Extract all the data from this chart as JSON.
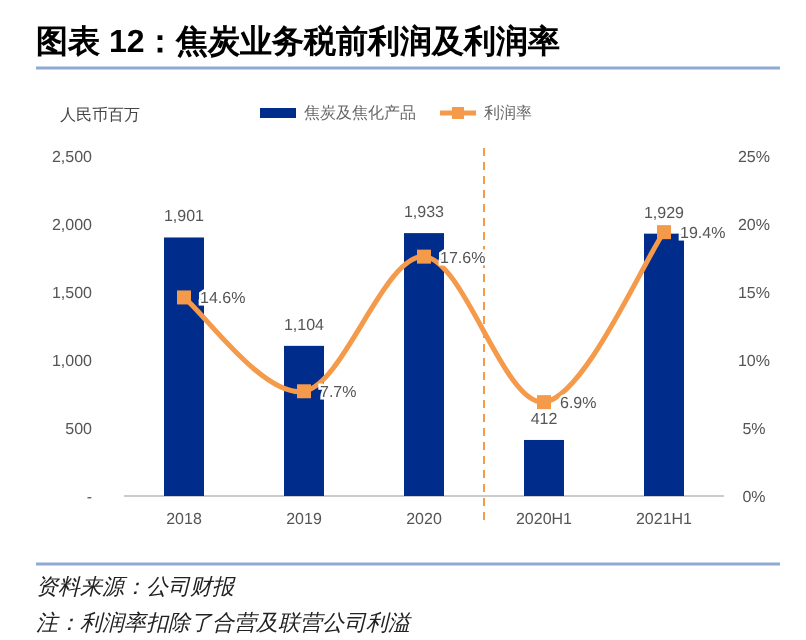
{
  "chart_data": {
    "type": "bar",
    "title": "图表 12：焦炭业务税前利润及利润率",
    "ylabel": "人民币百万",
    "categories": [
      "2018",
      "2019",
      "2020",
      "2020H1",
      "2021H1"
    ],
    "series": [
      {
        "name": "焦炭及焦化产品",
        "color": "#002d8c",
        "values": [
          1901,
          1104,
          1933,
          412,
          1929
        ],
        "value_labels": [
          "1,901",
          "1,104",
          "1,933",
          "412",
          "1,929"
        ]
      },
      {
        "name": "利润率",
        "type": "line",
        "axis": "y2",
        "color": "#f5994a",
        "marker": "square",
        "values": [
          14.6,
          7.7,
          17.6,
          6.9,
          19.4
        ],
        "value_labels": [
          "14.6%",
          "7.7%",
          "17.6%",
          "6.9%",
          "19.4%"
        ]
      }
    ],
    "ylim": [
      0,
      2500
    ],
    "yticks": [
      {
        "value": 0,
        "label": "-"
      },
      {
        "value": 500,
        "label": "500"
      },
      {
        "value": 1000,
        "label": "1,000"
      },
      {
        "value": 1500,
        "label": "1,500"
      },
      {
        "value": 2000,
        "label": "2,000"
      },
      {
        "value": 2500,
        "label": "2,500"
      }
    ],
    "y2lim": [
      0,
      25
    ],
    "y2ticks": [
      {
        "value": 0,
        "label": "0%"
      },
      {
        "value": 5,
        "label": "5%"
      },
      {
        "value": 10,
        "label": "10%"
      },
      {
        "value": 15,
        "label": "15%"
      },
      {
        "value": 20,
        "label": "20%"
      },
      {
        "value": 25,
        "label": "25%"
      }
    ],
    "legend": "top",
    "grid": false,
    "annotations": [
      "资料来源：公司财报",
      "注：利润率扣除了合营及联营公司利溢"
    ]
  }
}
